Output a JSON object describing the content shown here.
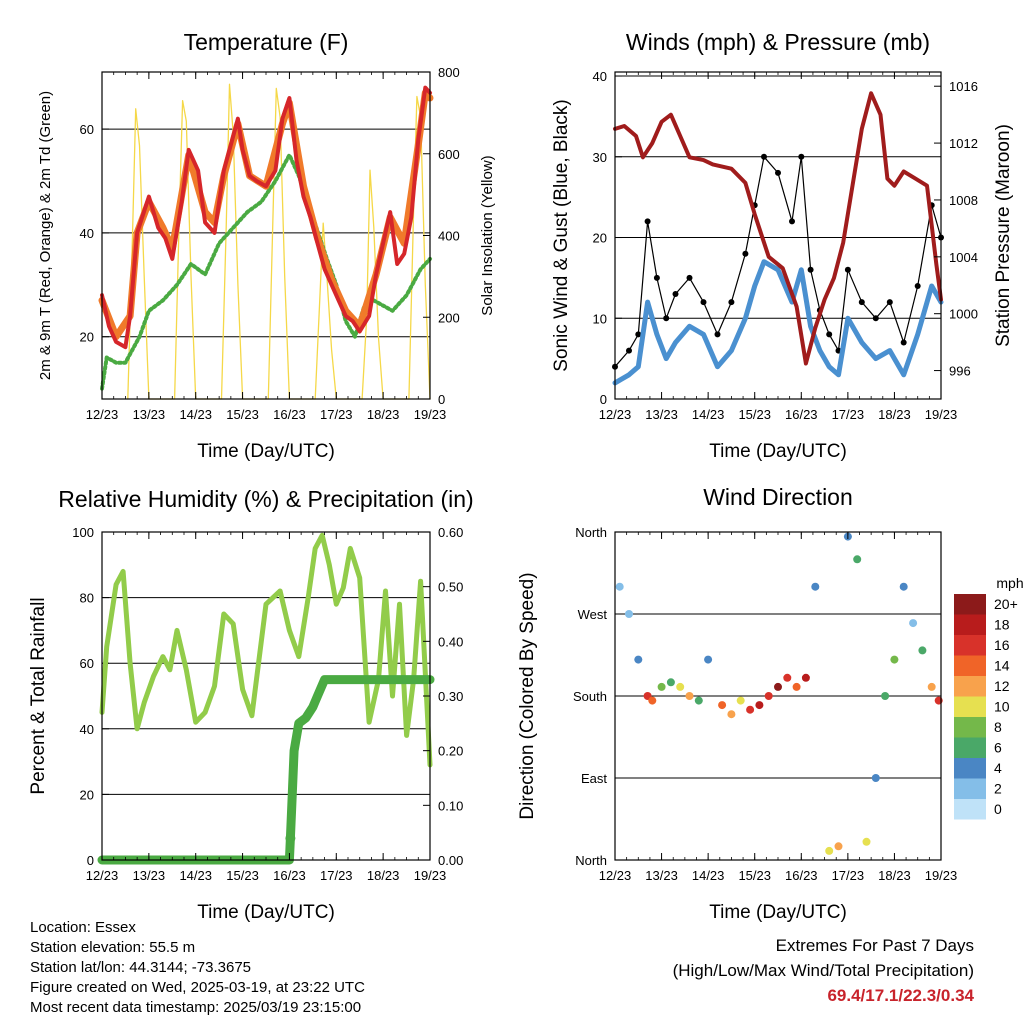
{
  "chart_data": [
    {
      "type": "line",
      "title": "Temperature (F)",
      "xlabel": "Time (Day/UTC)",
      "ylabel": "2m & 9m T (Red, Orange) & 2m Td (Green)",
      "y2label": "Solar Insolation (Yellow)",
      "x_ticks": [
        "12/23",
        "13/23",
        "14/23",
        "15/23",
        "16/23",
        "17/23",
        "18/23",
        "19/23"
      ],
      "ylim": [
        8,
        71
      ],
      "y_ticks": [
        20,
        40,
        60
      ],
      "y2lim": [
        0,
        800
      ],
      "y2_ticks": [
        0,
        200,
        400,
        600,
        800
      ],
      "grid": true,
      "colors": {
        "t2m": "#d6262a",
        "t9m": "#f07a2a",
        "td": "#4aaa42",
        "solar": "#f5d848"
      },
      "series": [
        {
          "key": "t2m",
          "x": [
            0,
            0.15,
            0.3,
            0.5,
            0.6,
            0.75,
            1.0,
            1.2,
            1.35,
            1.5,
            1.7,
            1.85,
            2.05,
            2.2,
            2.4,
            2.6,
            2.75,
            2.9,
            3.0,
            3.15,
            3.3,
            3.5,
            3.7,
            3.85,
            4.0,
            4.15,
            4.3,
            4.45,
            4.6,
            4.75,
            4.9,
            5.05,
            5.2,
            5.35,
            5.5,
            5.7,
            5.85,
            6.0,
            6.15,
            6.3,
            6.45,
            6.6,
            6.75,
            6.9,
            7.0
          ],
          "values": [
            28,
            22,
            19,
            18,
            24,
            40,
            47,
            41,
            39,
            35,
            46,
            56,
            52,
            42,
            40,
            52,
            57,
            62,
            56,
            51,
            50,
            49,
            52,
            62,
            66,
            54,
            47,
            43,
            38,
            33,
            30,
            27,
            24,
            23,
            21,
            24,
            32,
            38,
            44,
            34,
            36,
            43,
            58,
            68,
            67
          ]
        },
        {
          "key": "t9m",
          "x": [
            0,
            0.3,
            0.6,
            0.75,
            1.0,
            1.3,
            1.5,
            1.85,
            2.2,
            2.4,
            2.6,
            2.9,
            3.15,
            3.5,
            3.85,
            4.0,
            4.3,
            4.6,
            4.9,
            5.2,
            5.5,
            5.85,
            6.15,
            6.45,
            6.75,
            6.9,
            7.0
          ],
          "values": [
            27,
            20,
            24,
            40,
            46,
            41,
            37,
            55,
            44,
            42,
            51,
            61,
            51,
            49,
            61,
            65,
            49,
            39,
            31,
            25,
            22,
            32,
            43,
            38,
            57,
            67,
            66
          ]
        },
        {
          "key": "td",
          "x": [
            0,
            0.1,
            0.3,
            0.5,
            0.8,
            1.0,
            1.3,
            1.6,
            1.9,
            2.2,
            2.5,
            2.8,
            3.1,
            3.4,
            3.7,
            4.0,
            4.2,
            4.5,
            4.8,
            5.0,
            5.2,
            5.4,
            5.6,
            5.8,
            6.0,
            6.2,
            6.5,
            6.8,
            7.0
          ],
          "values": [
            10,
            16,
            15,
            15,
            20,
            25,
            27,
            30,
            34,
            32,
            38,
            41,
            44,
            46,
            50,
            55,
            51,
            43,
            35,
            30,
            23,
            20,
            26,
            27,
            26,
            25,
            28,
            33,
            35
          ]
        },
        {
          "key": "solar",
          "x": [
            0.55,
            0.65,
            0.72,
            0.8,
            0.9,
            1.0,
            1.55,
            1.65,
            1.72,
            1.8,
            1.9,
            2.0,
            2.55,
            2.65,
            2.72,
            2.8,
            2.9,
            3.0,
            3.55,
            3.65,
            3.72,
            3.8,
            3.9,
            4.0,
            4.55,
            4.65,
            4.72,
            4.8,
            4.9,
            5.0,
            5.55,
            5.65,
            5.72,
            5.8,
            5.9,
            6.0,
            6.55,
            6.65,
            6.72,
            6.8,
            6.9,
            7.0
          ],
          "values": [
            0,
            400,
            710,
            620,
            300,
            0,
            0,
            450,
            730,
            680,
            300,
            0,
            0,
            420,
            770,
            650,
            280,
            0,
            0,
            450,
            760,
            690,
            300,
            0,
            0,
            250,
            430,
            300,
            120,
            0,
            0,
            200,
            560,
            420,
            150,
            0,
            0,
            460,
            740,
            690,
            280,
            0
          ]
        }
      ]
    },
    {
      "type": "line",
      "title": "Winds (mph) & Pressure (mb)",
      "xlabel": "Time (Day/UTC)",
      "ylabel": "Sonic Wind & Gust (Blue, Black)",
      "y2label": "Station Pressure (Maroon)",
      "x_ticks": [
        "12/23",
        "13/23",
        "14/23",
        "15/23",
        "16/23",
        "17/23",
        "18/23",
        "19/23"
      ],
      "ylim": [
        0,
        40.5
      ],
      "y_ticks": [
        0,
        10,
        20,
        30,
        40
      ],
      "y2lim": [
        994,
        1017
      ],
      "y2_ticks": [
        996,
        1000,
        1004,
        1008,
        1012,
        1016
      ],
      "grid": true,
      "colors": {
        "wind": "#4a90d0",
        "gust": "#000000",
        "pressure": "#a01c1c"
      },
      "series": [
        {
          "key": "wind",
          "x": [
            0,
            0.3,
            0.5,
            0.7,
            0.9,
            1.1,
            1.3,
            1.6,
            1.9,
            2.2,
            2.5,
            2.8,
            3.0,
            3.2,
            3.5,
            3.8,
            4.0,
            4.2,
            4.4,
            4.6,
            4.8,
            5.0,
            5.3,
            5.6,
            5.9,
            6.2,
            6.5,
            6.8,
            7.0
          ],
          "values": [
            2,
            3,
            4,
            12,
            8,
            5,
            7,
            9,
            8,
            4,
            6,
            10,
            14,
            17,
            16,
            12,
            16,
            9,
            6,
            4,
            3,
            10,
            7,
            5,
            6,
            3,
            8,
            14,
            12
          ]
        },
        {
          "key": "gust",
          "x": [
            0,
            0.3,
            0.5,
            0.7,
            0.9,
            1.1,
            1.3,
            1.6,
            1.9,
            2.2,
            2.5,
            2.8,
            3.0,
            3.2,
            3.5,
            3.8,
            4.0,
            4.2,
            4.4,
            4.6,
            4.8,
            5.0,
            5.3,
            5.6,
            5.9,
            6.2,
            6.5,
            6.8,
            7.0
          ],
          "values": [
            4,
            6,
            8,
            22,
            15,
            10,
            13,
            15,
            12,
            8,
            12,
            18,
            24,
            30,
            28,
            22,
            30,
            16,
            11,
            8,
            6,
            16,
            12,
            10,
            12,
            7,
            14,
            24,
            20
          ]
        },
        {
          "key": "pressure",
          "x": [
            0,
            0.2,
            0.45,
            0.6,
            0.8,
            1.0,
            1.2,
            1.4,
            1.6,
            1.9,
            2.1,
            2.5,
            2.8,
            3.0,
            3.3,
            3.6,
            3.9,
            4.1,
            4.3,
            4.5,
            4.7,
            4.9,
            5.1,
            5.3,
            5.5,
            5.7,
            5.85,
            6.0,
            6.2,
            6.45,
            6.7,
            6.9,
            7.0
          ],
          "values": [
            1013,
            1013.2,
            1012.5,
            1011,
            1012,
            1013.5,
            1014,
            1012.5,
            1011,
            1010.8,
            1010.5,
            1010.2,
            1009.2,
            1007,
            1004,
            1003.2,
            1000.5,
            996.5,
            999,
            1001,
            1002.5,
            1005,
            1009,
            1013,
            1015.5,
            1014,
            1009.5,
            1009,
            1010,
            1009.5,
            1009,
            1003.5,
            1001
          ]
        }
      ]
    },
    {
      "type": "line",
      "title": "Relative Humidity (%) & Precipitation (in)",
      "xlabel": "Time (Day/UTC)",
      "ylabel": "Percent & Total Rainfall",
      "x_ticks": [
        "12/23",
        "13/23",
        "14/23",
        "15/23",
        "16/23",
        "17/23",
        "18/23",
        "19/23"
      ],
      "ylim": [
        0,
        100
      ],
      "y_ticks": [
        0,
        20,
        40,
        60,
        80,
        100
      ],
      "y2lim": [
        0,
        0.6
      ],
      "y2_ticks": [
        "0.00",
        "0.10",
        "0.20",
        "0.30",
        "0.40",
        "0.50",
        "0.60"
      ],
      "grid": true,
      "colors": {
        "rh": "#92cc4a",
        "precip": "#4aaa42"
      },
      "series": [
        {
          "key": "rh",
          "x": [
            0,
            0.1,
            0.3,
            0.45,
            0.6,
            0.75,
            0.9,
            1.1,
            1.3,
            1.45,
            1.6,
            1.8,
            2.0,
            2.2,
            2.4,
            2.6,
            2.8,
            3.0,
            3.2,
            3.5,
            3.8,
            4.0,
            4.2,
            4.4,
            4.55,
            4.7,
            4.85,
            5.0,
            5.15,
            5.3,
            5.5,
            5.7,
            5.9,
            6.05,
            6.2,
            6.35,
            6.5,
            6.65,
            6.8,
            7.0
          ],
          "values": [
            45,
            65,
            84,
            88,
            60,
            40,
            48,
            56,
            62,
            58,
            70,
            58,
            42,
            45,
            53,
            75,
            72,
            52,
            44,
            78,
            82,
            70,
            62,
            80,
            95,
            99,
            90,
            78,
            83,
            95,
            86,
            42,
            55,
            82,
            50,
            78,
            38,
            55,
            85,
            29
          ]
        },
        {
          "key": "precip",
          "x": [
            0,
            4.0,
            4.02,
            4.05,
            4.1,
            4.2,
            4.35,
            4.5,
            4.6,
            4.75,
            5.0,
            6.0,
            7.0
          ],
          "values": [
            0,
            0,
            0.04,
            0.1,
            0.2,
            0.25,
            0.26,
            0.28,
            0.3,
            0.33,
            0.33,
            0.33,
            0.33
          ]
        }
      ]
    },
    {
      "type": "scatter",
      "title": "Wind Direction",
      "xlabel": "Time (Day/UTC)",
      "ylabel": "Direction (Colored By Speed)",
      "x_ticks": [
        "12/23",
        "13/23",
        "14/23",
        "15/23",
        "16/23",
        "17/23",
        "18/23",
        "19/23"
      ],
      "y_tick_labels": [
        "North",
        "East",
        "South",
        "West",
        "North"
      ],
      "ylim": [
        0,
        360
      ],
      "legend_title": "mph",
      "legend_labels": [
        "20+",
        "18",
        "16",
        "14",
        "12",
        "10",
        "8",
        "6",
        "4",
        "2",
        "0"
      ],
      "legend_colors": [
        "#8c1a1a",
        "#b81c1c",
        "#d8322a",
        "#f06428",
        "#f8a24c",
        "#e6e050",
        "#74b84a",
        "#4aa868",
        "#4a86c4",
        "#84bee8",
        "#bfe2f8"
      ],
      "grid": true,
      "series": [
        {
          "name": "direction",
          "x": [
            0.1,
            0.3,
            0.5,
            0.7,
            0.8,
            1.0,
            1.2,
            1.4,
            1.6,
            1.8,
            2.0,
            2.3,
            2.5,
            2.7,
            2.9,
            3.1,
            3.3,
            3.5,
            3.7,
            3.9,
            4.1,
            4.3,
            4.6,
            4.8,
            5.0,
            5.2,
            5.4,
            5.6,
            5.8,
            6.0,
            6.2,
            6.4,
            6.6,
            6.8,
            6.95
          ],
          "values": [
            300,
            270,
            220,
            180,
            175,
            190,
            195,
            190,
            180,
            175,
            220,
            170,
            160,
            175,
            165,
            170,
            180,
            190,
            200,
            190,
            200,
            300,
            10,
            15,
            355,
            330,
            20,
            90,
            180,
            220,
            300,
            260,
            230,
            190,
            175
          ],
          "speeds": [
            2,
            1,
            3,
            16,
            14,
            8,
            6,
            10,
            12,
            6,
            3,
            14,
            12,
            10,
            16,
            18,
            16,
            20,
            16,
            14,
            18,
            4,
            10,
            12,
            4,
            6,
            10,
            4,
            6,
            8,
            4,
            2,
            6,
            12,
            16
          ]
        }
      ]
    }
  ],
  "footer": {
    "location": "Location: Essex",
    "elevation": "Station elevation: 55.5 m",
    "latlon": "Station lat/lon: 44.3144; -73.3675",
    "created": "Figure created on Wed, 2025-03-19, at 23:22 UTC",
    "recent": "Most recent data timestamp: 2025/03/19 23:15:00",
    "extremes_title": "Extremes For Past 7 Days",
    "extremes_subtitle": "(High/Low/Max Wind/Total Precipitation)",
    "extremes_values": "69.4/17.1/22.3/0.34"
  }
}
